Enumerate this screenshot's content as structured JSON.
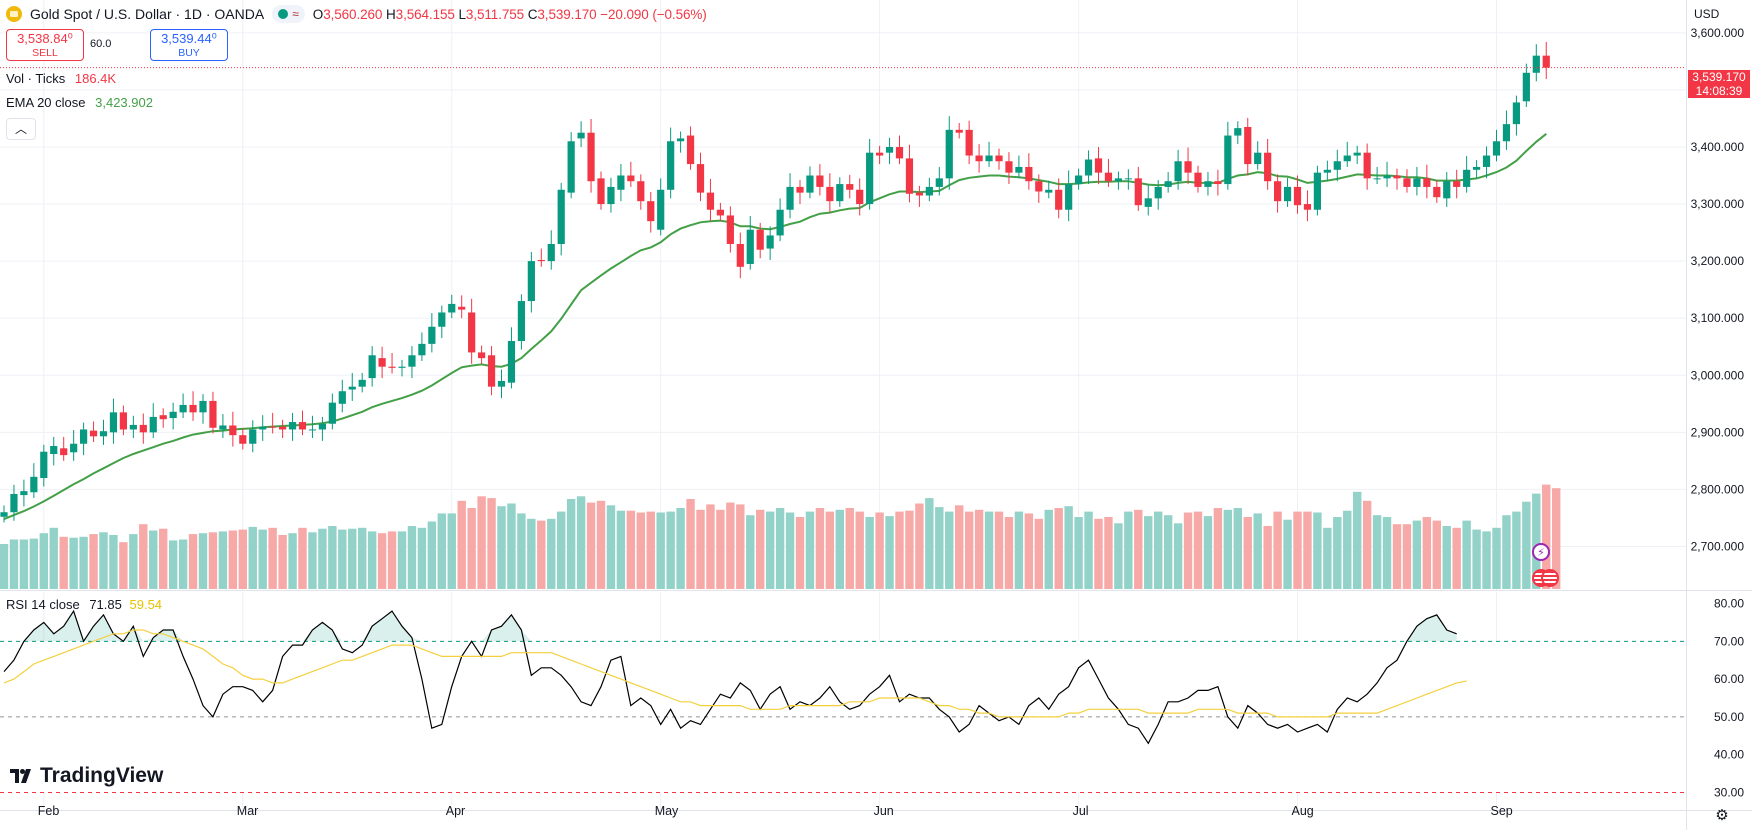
{
  "header": {
    "title": "Gold Spot / U.S. Dollar · 1D · OANDA",
    "market_status_symbol": "≈",
    "open_label": "O",
    "open": "3,560.260",
    "high_label": "H",
    "high": "3,564.155",
    "low_label": "L",
    "low": "3,511.755",
    "close_label": "C",
    "close": "3,539.170",
    "change": "−20.090 (−0.56%)",
    "currency": "USD"
  },
  "trade": {
    "sell_price": "3,538.84⁰",
    "sell_label": "SELL",
    "buy_price": "3,539.44⁰",
    "buy_label": "BUY",
    "spread": "60.0"
  },
  "legends": {
    "volume_label": "Vol · Ticks",
    "volume_value": "186.4K",
    "ema_label": "EMA 20 close",
    "ema_value": "3,423.902",
    "rsi_label": "RSI 14 close",
    "rsi_value": "71.85",
    "rsi_ma_value": "59.54"
  },
  "price_tag": {
    "price": "3,539.170",
    "countdown": "14:08:39"
  },
  "branding": {
    "logo_text": "TradingView"
  },
  "colors": {
    "up": "#089981",
    "down": "#f23645",
    "vol_up": "#92d2c8",
    "vol_down": "#f7a9a8",
    "ema": "#43a047",
    "rsi": "#000000",
    "rsi_ma": "#f4d03f",
    "grid": "#eef0f5"
  },
  "chart_data": [
    {
      "type": "candlestick",
      "title": "Gold Spot / U.S. Dollar · 1D · OANDA",
      "price_axis_ticks": [
        3600,
        3500,
        3400,
        3300,
        3200,
        3100,
        3000,
        2900,
        2800,
        2700
      ],
      "price_axis_labels": [
        "3,600.000",
        "3,500.000",
        "3,400.000",
        "3,300.000",
        "3,200.000",
        "3,100.000",
        "3,000.000",
        "2,900.000",
        "2,800.000",
        "2,700.000"
      ],
      "ylim": [
        2650,
        3640
      ],
      "x_axis_labels": [
        "Feb",
        "Mar",
        "Apr",
        "May",
        "Jun",
        "Jul",
        "Aug",
        "Sep"
      ],
      "x_axis_label_index": [
        4,
        24,
        45,
        66,
        88,
        108,
        130,
        150
      ],
      "candles_open": [
        2752,
        2760,
        2790,
        2795,
        2820,
        2862,
        2872,
        2865,
        2880,
        2903,
        2893,
        2900,
        2935,
        2905,
        2913,
        2900,
        2930,
        2925,
        2935,
        2948,
        2935,
        2955,
        2905,
        2912,
        2895,
        2880,
        2905,
        2910,
        2910,
        2905,
        2918,
        2905,
        2905,
        2915,
        2950,
        2975,
        2980,
        2995,
        3030,
        3015,
        3013,
        3015,
        3035,
        3055,
        3085,
        3110,
        3120,
        3110,
        3040,
        3035,
        2980,
        2987,
        3060,
        3130,
        3202,
        3200,
        3230,
        3320,
        3415,
        3425,
        3345,
        3300,
        3325,
        3350,
        3340,
        3305,
        3255,
        3325,
        3410,
        3420,
        3370,
        3320,
        3290,
        3280,
        3230,
        3195,
        3255,
        3222,
        3245,
        3290,
        3330,
        3320,
        3350,
        3330,
        3305,
        3335,
        3325,
        3300,
        3390,
        3390,
        3400,
        3380,
        3320,
        3315,
        3330,
        3345,
        3430,
        3430,
        3385,
        3375,
        3385,
        3375,
        3355,
        3365,
        3340,
        3320,
        3325,
        3290,
        3335,
        3350,
        3380,
        3355,
        3340,
        3345,
        3345,
        3295,
        3310,
        3330,
        3340,
        3375,
        3355,
        3330,
        3340,
        3335,
        3420,
        3435,
        3370,
        3390,
        3340,
        3305,
        3330,
        3300,
        3290,
        3355,
        3360,
        3375,
        3385,
        3390,
        3345,
        3345,
        3350,
        3345,
        3330,
        3345,
        3330,
        3310,
        3340,
        3330,
        3360,
        3365,
        3385,
        3410,
        3440,
        3480,
        3530,
        3560
      ],
      "candles_close": [
        2760,
        2792,
        2797,
        2822,
        2866,
        2876,
        2860,
        2880,
        2905,
        2893,
        2902,
        2935,
        2905,
        2913,
        2900,
        2927,
        2923,
        2936,
        2948,
        2935,
        2955,
        2908,
        2912,
        2895,
        2880,
        2905,
        2910,
        2908,
        2905,
        2918,
        2905,
        2905,
        2915,
        2952,
        2972,
        2980,
        2992,
        3035,
        3015,
        3013,
        3015,
        3035,
        3055,
        3085,
        3110,
        3125,
        3115,
        3040,
        3030,
        2980,
        2990,
        3060,
        3130,
        3200,
        3200,
        3230,
        3325,
        3410,
        3425,
        3340,
        3300,
        3330,
        3350,
        3340,
        3305,
        3270,
        3325,
        3410,
        3415,
        3370,
        3320,
        3290,
        3280,
        3230,
        3190,
        3255,
        3220,
        3245,
        3290,
        3330,
        3320,
        3350,
        3330,
        3305,
        3335,
        3325,
        3300,
        3390,
        3385,
        3400,
        3380,
        3318,
        3315,
        3330,
        3345,
        3430,
        3425,
        3385,
        3375,
        3385,
        3375,
        3355,
        3365,
        3340,
        3322,
        3325,
        3290,
        3335,
        3350,
        3378,
        3355,
        3340,
        3345,
        3345,
        3298,
        3310,
        3330,
        3340,
        3375,
        3355,
        3330,
        3340,
        3335,
        3420,
        3433,
        3370,
        3390,
        3340,
        3305,
        3330,
        3298,
        3290,
        3355,
        3360,
        3375,
        3385,
        3390,
        3345,
        3345,
        3350,
        3345,
        3330,
        3345,
        3330,
        3312,
        3340,
        3330,
        3360,
        3365,
        3385,
        3410,
        3440,
        3478,
        3530,
        3560,
        3539
      ],
      "volume_max_axis": 200,
      "volume_bars": [
        50,
        55,
        55,
        56,
        62,
        68,
        58,
        57,
        58,
        61,
        63,
        60,
        52,
        61,
        72,
        65,
        67,
        54,
        55,
        61,
        62,
        63,
        64,
        65,
        66,
        69,
        66,
        68,
        60,
        62,
        68,
        63,
        67,
        70,
        66,
        67,
        68,
        64,
        62,
        64,
        64,
        70,
        68,
        75,
        84,
        84,
        98,
        90,
        103,
        101,
        92,
        95,
        84,
        78,
        76,
        78,
        86,
        100,
        103,
        96,
        98,
        93,
        87,
        87,
        85,
        86,
        85,
        86,
        90,
        100,
        88,
        94,
        88,
        96,
        94,
        82,
        88,
        86,
        90,
        85,
        80,
        86,
        90,
        86,
        88,
        90,
        86,
        80,
        85,
        81,
        86,
        87,
        95,
        101,
        91,
        86,
        93,
        86,
        88,
        86,
        86,
        80,
        86,
        84,
        78,
        88,
        90,
        92,
        80,
        86,
        78,
        80,
        73,
        86,
        88,
        81,
        86,
        82,
        73,
        85,
        86,
        81,
        90,
        88,
        90,
        80,
        84,
        70,
        86,
        77,
        86,
        86,
        85,
        68,
        80,
        87,
        108,
        98,
        82,
        80,
        72,
        72,
        76,
        80,
        76,
        70,
        68,
        76,
        66,
        64,
        68,
        82,
        86,
        97,
        106,
        116,
        112
      ]
    },
    {
      "type": "line",
      "title": "EMA 20 close",
      "values": [
        2748,
        2755,
        2762,
        2770,
        2779,
        2789,
        2799,
        2809,
        2818,
        2828,
        2837,
        2846,
        2855,
        2862,
        2868,
        2874,
        2880,
        2885,
        2891,
        2896,
        2899,
        2902,
        2903,
        2905,
        2906,
        2907,
        2909,
        2910,
        2911,
        2912,
        2913,
        2914,
        2916,
        2919,
        2924,
        2930,
        2936,
        2944,
        2950,
        2955,
        2960,
        2966,
        2973,
        2982,
        2993,
        3004,
        3014,
        3017,
        3019,
        3016,
        3015,
        3020,
        3030,
        3046,
        3061,
        3077,
        3099,
        3124,
        3149,
        3162,
        3175,
        3187,
        3198,
        3209,
        3219,
        3224,
        3233,
        3247,
        3257,
        3263,
        3268,
        3270,
        3271,
        3268,
        3261,
        3261,
        3257,
        3256,
        3260,
        3265,
        3269,
        3277,
        3283,
        3285,
        3289,
        3292,
        3293,
        3303,
        3310,
        3317,
        3322,
        3322,
        3321,
        3322,
        3323,
        3333,
        3342,
        3346,
        3348,
        3350,
        3350,
        3348,
        3347,
        3345,
        3342,
        3339,
        3335,
        3335,
        3336,
        3338,
        3339,
        3339,
        3340,
        3340,
        3337,
        3334,
        3333,
        3334,
        3337,
        3339,
        3337,
        3337,
        3337,
        3344,
        3350,
        3352,
        3356,
        3354,
        3349,
        3348,
        3343,
        3337,
        3339,
        3341,
        3344,
        3348,
        3352,
        3351,
        3350,
        3350,
        3349,
        3347,
        3347,
        3345,
        3341,
        3341,
        3341,
        3343,
        3345,
        3350,
        3356,
        3364,
        3376,
        3393,
        3409,
        3423
      ]
    },
    {
      "type": "line",
      "title": "RSI 14 close",
      "ylim": [
        28,
        82
      ],
      "axis_ticks": [
        80,
        70,
        60,
        50,
        40,
        30
      ],
      "axis_labels": [
        "80.00",
        "70.00",
        "60.00",
        "50.00",
        "40.00",
        "30.00"
      ],
      "overbought": 70,
      "midline": 50,
      "oversold": 30,
      "values": [
        62,
        65,
        70,
        73,
        75,
        72,
        74,
        78,
        70,
        74,
        77,
        72,
        70,
        74,
        66,
        71,
        73,
        73,
        66,
        60,
        53,
        50,
        56,
        58,
        58,
        57,
        54,
        57,
        66,
        69,
        69,
        73,
        75,
        73,
        68,
        67,
        69,
        74,
        76,
        78,
        74,
        71,
        60,
        47,
        48,
        58,
        66,
        70,
        66,
        73,
        74,
        77,
        73,
        61,
        63,
        63,
        61,
        58,
        54,
        53,
        58,
        65,
        66,
        53,
        55,
        53,
        48,
        52,
        47,
        49,
        48,
        52,
        56,
        55,
        59,
        57,
        52,
        56,
        58,
        52,
        54,
        53,
        55,
        58,
        54,
        52,
        53,
        56,
        58,
        61,
        54,
        56,
        55,
        55,
        52,
        50,
        46,
        48,
        53,
        51,
        49,
        50,
        48,
        53,
        55,
        52,
        56,
        58,
        63,
        65,
        60,
        55,
        52,
        48,
        47,
        43,
        48,
        54,
        54,
        55,
        57,
        57,
        58,
        50,
        47,
        53,
        51,
        48,
        47,
        48,
        46,
        47,
        48,
        46,
        52,
        55,
        54,
        56,
        59,
        63,
        65,
        70,
        74,
        76,
        77,
        73,
        72
      ],
      "rsi_ma_values": [
        59,
        60,
        62,
        64,
        65,
        66,
        67,
        68,
        69,
        70,
        71,
        72,
        72,
        73,
        73,
        72,
        72,
        71,
        70,
        69,
        68,
        66,
        64,
        63,
        61,
        60,
        60,
        59,
        59,
        60,
        61,
        62,
        63,
        64,
        65,
        65,
        66,
        67,
        68,
        69,
        69,
        69,
        68,
        67,
        66,
        66,
        66,
        66,
        66,
        66,
        66,
        67,
        67,
        67,
        67,
        67,
        66,
        65,
        64,
        63,
        62,
        61,
        60,
        59,
        58,
        57,
        56,
        55,
        54,
        54,
        53,
        53,
        53,
        53,
        53,
        52,
        52,
        52,
        52,
        53,
        53,
        53,
        53,
        53,
        53,
        54,
        54,
        54,
        55,
        55,
        55,
        55,
        55,
        54,
        53,
        53,
        52,
        52,
        51,
        51,
        50,
        50,
        50,
        50,
        50,
        50,
        50,
        51,
        51,
        52,
        52,
        52,
        52,
        52,
        52,
        51,
        51,
        51,
        51,
        51,
        52,
        52,
        52,
        52,
        51,
        51,
        51,
        51,
        50,
        50,
        50,
        50,
        50,
        50,
        51,
        51,
        51,
        51,
        51,
        52,
        53,
        54,
        55,
        56,
        57,
        58,
        59,
        59.5
      ]
    }
  ]
}
